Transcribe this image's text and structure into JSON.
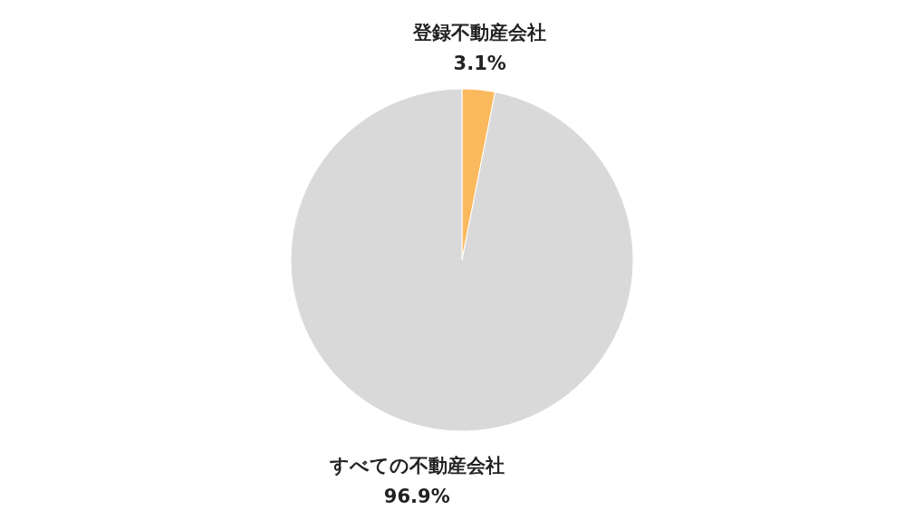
{
  "chart_data": {
    "type": "pie",
    "categories": [
      "登録不動産会社",
      "すべての不動産会社"
    ],
    "values": [
      3.1,
      96.9
    ],
    "colors": [
      "#fbb95e",
      "#d9d9d9"
    ],
    "value_labels": [
      "3.1%",
      "96.9%"
    ]
  }
}
